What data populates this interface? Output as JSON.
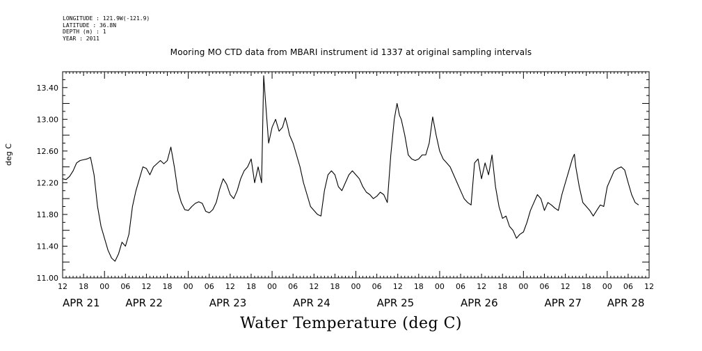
{
  "meta": {
    "longitude": "LONGITUDE : 121.9W(-121.9)",
    "latitude": "LATITUDE : 36.8N",
    "depth": "DEPTH (m) : 1",
    "year": "YEAR : 2011"
  },
  "chart_data": {
    "type": "line",
    "title": "Mooring MO CTD data from MBARI instrument id 1337 at original sampling intervals",
    "xlabel": "Water Temperature (deg C)",
    "ylabel": "deg C",
    "ylim": [
      11.0,
      13.6
    ],
    "yticks": [
      "11.00",
      "11.40",
      "11.80",
      "12.20",
      "12.60",
      "13.00",
      "13.40"
    ],
    "xlim_hours": [
      0,
      168
    ],
    "x_unit": "hours since APR 21 12:00 (2011)",
    "hour_tick_labels": [
      "12",
      "18",
      "00",
      "06",
      "12",
      "18",
      "00",
      "06",
      "12",
      "18",
      "00",
      "06",
      "12",
      "18",
      "00",
      "06",
      "12",
      "18",
      "00",
      "06",
      "12",
      "18",
      "00",
      "06",
      "12",
      "18",
      "00",
      "06",
      "12"
    ],
    "day_labels": [
      {
        "label": "APR 21",
        "hour": 0
      },
      {
        "label": "APR 22",
        "hour": 18
      },
      {
        "label": "APR 23",
        "hour": 42
      },
      {
        "label": "APR 24",
        "hour": 66
      },
      {
        "label": "APR 25",
        "hour": 90
      },
      {
        "label": "APR 26",
        "hour": 114
      },
      {
        "label": "APR 27",
        "hour": 138
      },
      {
        "label": "APR 28",
        "hour": 156
      }
    ],
    "grid": false,
    "series": [
      {
        "values": [
          [
            0,
            12.25
          ],
          [
            1,
            12.24
          ],
          [
            2,
            12.28
          ],
          [
            3,
            12.35
          ],
          [
            4,
            12.45
          ],
          [
            5,
            12.48
          ],
          [
            6,
            12.49
          ],
          [
            7,
            12.5
          ],
          [
            8,
            12.52
          ],
          [
            9,
            12.3
          ],
          [
            10,
            11.9
          ],
          [
            11,
            11.65
          ],
          [
            12,
            11.5
          ],
          [
            13,
            11.35
          ],
          [
            14,
            11.25
          ],
          [
            15,
            11.21
          ],
          [
            16,
            11.3
          ],
          [
            17,
            11.45
          ],
          [
            18,
            11.4
          ],
          [
            19,
            11.55
          ],
          [
            20,
            11.9
          ],
          [
            21,
            12.1
          ],
          [
            22,
            12.25
          ],
          [
            23,
            12.4
          ],
          [
            24,
            12.38
          ],
          [
            25,
            12.3
          ],
          [
            26,
            12.4
          ],
          [
            27,
            12.44
          ],
          [
            28,
            12.48
          ],
          [
            29,
            12.44
          ],
          [
            30,
            12.48
          ],
          [
            31,
            12.65
          ],
          [
            32,
            12.4
          ],
          [
            33,
            12.1
          ],
          [
            34,
            11.95
          ],
          [
            35,
            11.86
          ],
          [
            36,
            11.85
          ],
          [
            37,
            11.9
          ],
          [
            38,
            11.94
          ],
          [
            39,
            11.96
          ],
          [
            40,
            11.94
          ],
          [
            41,
            11.84
          ],
          [
            42,
            11.82
          ],
          [
            43,
            11.86
          ],
          [
            44,
            11.95
          ],
          [
            45,
            12.12
          ],
          [
            46,
            12.25
          ],
          [
            47,
            12.18
          ],
          [
            48,
            12.05
          ],
          [
            49,
            12.0
          ],
          [
            50,
            12.1
          ],
          [
            51,
            12.25
          ],
          [
            52,
            12.35
          ],
          [
            53,
            12.4
          ],
          [
            54,
            12.5
          ],
          [
            55,
            12.2
          ],
          [
            56,
            12.4
          ],
          [
            57,
            12.2
          ],
          [
            57.6,
            13.55
          ],
          [
            58,
            13.3
          ],
          [
            59,
            12.7
          ],
          [
            60,
            12.9
          ],
          [
            61,
            13.0
          ],
          [
            62,
            12.85
          ],
          [
            63,
            12.9
          ],
          [
            63.8,
            13.02
          ],
          [
            64.5,
            12.9
          ],
          [
            65,
            12.8
          ],
          [
            66,
            12.7
          ],
          [
            67,
            12.55
          ],
          [
            68,
            12.4
          ],
          [
            69,
            12.2
          ],
          [
            70,
            12.05
          ],
          [
            71,
            11.9
          ],
          [
            72,
            11.85
          ],
          [
            73,
            11.8
          ],
          [
            74,
            11.78
          ],
          [
            75,
            12.1
          ],
          [
            76,
            12.3
          ],
          [
            77,
            12.35
          ],
          [
            78,
            12.3
          ],
          [
            79,
            12.15
          ],
          [
            80,
            12.1
          ],
          [
            81,
            12.2
          ],
          [
            82,
            12.3
          ],
          [
            83,
            12.35
          ],
          [
            84,
            12.3
          ],
          [
            85,
            12.25
          ],
          [
            86,
            12.15
          ],
          [
            87,
            12.08
          ],
          [
            88,
            12.05
          ],
          [
            89,
            12.0
          ],
          [
            90,
            12.03
          ],
          [
            91,
            12.08
          ],
          [
            92,
            12.05
          ],
          [
            93,
            11.95
          ],
          [
            94,
            12.55
          ],
          [
            95,
            13.0
          ],
          [
            95.8,
            13.2
          ],
          [
            96.5,
            13.05
          ],
          [
            97,
            13.0
          ],
          [
            98,
            12.8
          ],
          [
            99,
            12.55
          ],
          [
            100,
            12.5
          ],
          [
            101,
            12.48
          ],
          [
            102,
            12.5
          ],
          [
            103,
            12.55
          ],
          [
            104,
            12.55
          ],
          [
            105,
            12.7
          ],
          [
            106,
            13.03
          ],
          [
            107,
            12.8
          ],
          [
            108,
            12.6
          ],
          [
            109,
            12.5
          ],
          [
            110,
            12.45
          ],
          [
            111,
            12.4
          ],
          [
            112,
            12.3
          ],
          [
            113,
            12.2
          ],
          [
            114,
            12.1
          ],
          [
            115,
            12.0
          ],
          [
            116,
            11.95
          ],
          [
            117,
            11.92
          ],
          [
            118,
            12.45
          ],
          [
            119,
            12.5
          ],
          [
            120,
            12.25
          ],
          [
            121,
            12.45
          ],
          [
            122,
            12.3
          ],
          [
            123,
            12.55
          ],
          [
            124,
            12.15
          ],
          [
            125,
            11.9
          ],
          [
            126,
            11.75
          ],
          [
            127,
            11.78
          ],
          [
            128,
            11.65
          ],
          [
            129,
            11.6
          ],
          [
            130,
            11.5
          ],
          [
            131,
            11.55
          ],
          [
            132,
            11.58
          ],
          [
            133,
            11.7
          ],
          [
            134,
            11.85
          ],
          [
            135,
            11.95
          ],
          [
            136,
            12.05
          ],
          [
            137,
            12.0
          ],
          [
            138,
            11.85
          ],
          [
            139,
            11.95
          ],
          [
            140,
            11.92
          ],
          [
            141,
            11.88
          ],
          [
            142,
            11.85
          ],
          [
            143,
            12.05
          ],
          [
            144,
            12.2
          ],
          [
            145,
            12.35
          ],
          [
            146,
            12.5
          ],
          [
            146.6,
            12.56
          ],
          [
            147,
            12.4
          ],
          [
            148,
            12.15
          ],
          [
            149,
            11.95
          ],
          [
            150,
            11.9
          ],
          [
            151,
            11.85
          ],
          [
            152,
            11.78
          ],
          [
            153,
            11.85
          ],
          [
            154,
            11.92
          ],
          [
            155,
            11.9
          ],
          [
            156,
            12.15
          ],
          [
            157,
            12.25
          ],
          [
            158,
            12.35
          ],
          [
            159,
            12.38
          ],
          [
            160,
            12.4
          ],
          [
            161,
            12.36
          ],
          [
            162,
            12.2
          ],
          [
            163,
            12.05
          ],
          [
            164,
            11.95
          ],
          [
            165,
            11.92
          ]
        ]
      }
    ]
  }
}
